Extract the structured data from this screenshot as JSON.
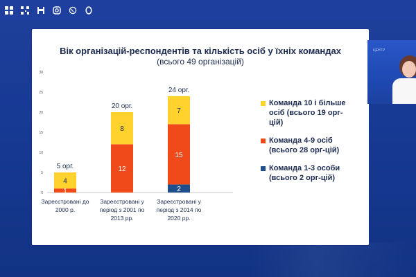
{
  "topbar": {
    "icons": [
      "apps-icon",
      "qr-code-icon",
      "save-icon",
      "instagram-icon",
      "viber-icon",
      "opera-icon"
    ]
  },
  "slide": {
    "title": "Вік організацій-респондентів та кількість осіб у їхніх командах",
    "subtitle": "(всього 49 організацій)"
  },
  "chart_data": {
    "type": "bar",
    "stacked": true,
    "title": "Вік організацій-респондентів та кількість осіб у їхніх командах",
    "subtitle": "(всього 49 організацій)",
    "categories": [
      "Зареєстровані до 2000 р.",
      "Зареєстровані у період з 2001 по 2013 рр.",
      "Зареєстровані у період з 2014 по 2020 рр."
    ],
    "category_lines": [
      [
        "Зареєстровані до",
        "2000 р."
      ],
      [
        "Зареєстровані у",
        "період з 2001 по",
        "2013 рр."
      ],
      [
        "Зареєстровані у",
        "період з 2014 по",
        "2020 рр."
      ]
    ],
    "totals_labels": [
      "5 орг.",
      "20 орг.",
      "24 орг."
    ],
    "series": [
      {
        "name": "Команда 1-3 особи (всього 2 орг-цій)",
        "color": "#1f4e8c",
        "values": [
          0,
          0,
          2
        ]
      },
      {
        "name": "Команда 4-9 осіб (всього 28 орг-цій)",
        "color": "#f04a1a",
        "values": [
          1,
          12,
          15
        ]
      },
      {
        "name": "Команда 10 і більше осіб (всього 19 орг-цій)",
        "color": "#ffd22e",
        "values": [
          4,
          8,
          7
        ]
      }
    ],
    "ylim": [
      0,
      30
    ],
    "yticks": [
      0,
      5,
      10,
      15,
      20,
      25,
      30
    ],
    "legend_position": "right",
    "grid": false
  },
  "legend": {
    "items": [
      {
        "color": "#ffd22e",
        "line1": "Команда 10 і більше",
        "line2": "осіб (всього 19 орг-",
        "line3": "цій)"
      },
      {
        "color": "#f04a1a",
        "line1": "Команда 4-9 осіб",
        "line2": "(всього 28 орг-цій)",
        "line3": ""
      },
      {
        "color": "#1f4e8c",
        "line1": "Команда 1-3 особи",
        "line2": "(всього 2 орг-цій)",
        "line3": ""
      }
    ]
  }
}
